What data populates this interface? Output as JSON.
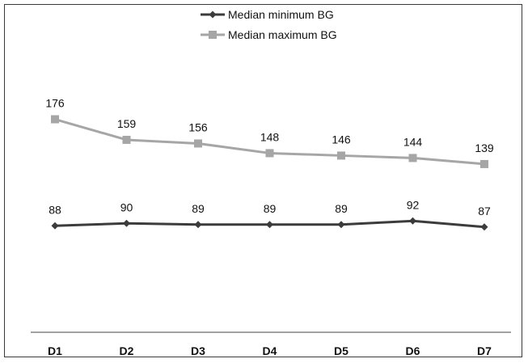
{
  "chart_data": {
    "type": "line",
    "categories": [
      "D1",
      "D2",
      "D3",
      "D4",
      "D5",
      "D6",
      "D7"
    ],
    "series": [
      {
        "name": "Median minimum BG",
        "values": [
          88,
          90,
          89,
          89,
          89,
          92,
          87
        ],
        "color": "#3c3c3c",
        "marker": "diamond"
      },
      {
        "name": "Median maximum BG",
        "values": [
          176,
          159,
          156,
          148,
          146,
          144,
          139
        ],
        "color": "#a6a6a6",
        "marker": "square"
      }
    ],
    "ylim": [
      0,
      190
    ],
    "grid": false,
    "legend_position": "top-center",
    "title": "",
    "xlabel": "",
    "ylabel": ""
  }
}
